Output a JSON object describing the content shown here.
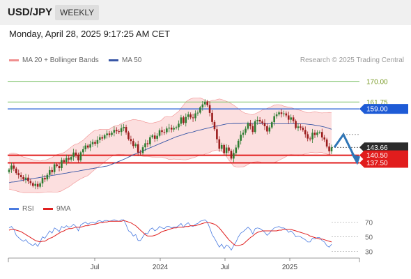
{
  "header": {
    "symbol": "USD/JPY",
    "period": "WEEKLY"
  },
  "timestamp": "Monday, April 28, 2025 9:17:25 AM CET",
  "credit": "Research © 2025 Trading Central",
  "legend_main": {
    "bb_label": "MA 20 + Bollinger Bands",
    "ma50_label": "MA 50"
  },
  "legend_rsi": {
    "rsi_label": "RSI",
    "ma9_label": "9MA"
  },
  "colors": {
    "bull": "#2e7d32",
    "bear": "#9b1c1c",
    "bb_fill": "#fcd9d9",
    "bb_line": "#f08f8f",
    "ma50": "#3856a6",
    "resistance_green": "#7fc36b",
    "blue_level": "#1e5bd6",
    "support_red": "#e11d1d",
    "arrow": "#2e75b6",
    "rsi": "#4a7be0",
    "rsi_ma": "#e02020"
  },
  "chart_data": [
    {
      "type": "candlestick",
      "title": "USD/JPY Weekly",
      "ylim": [
        124,
        176
      ],
      "x_axis_labels": [
        "Jul",
        "2024",
        "Jul",
        "2025"
      ],
      "levels": [
        {
          "value": 170.0,
          "label": "170.00",
          "style": "line-green"
        },
        {
          "value": 161.75,
          "label": "161.75",
          "style": "line-green"
        },
        {
          "value": 159.0,
          "label": "159.00",
          "style": "badge-blue"
        },
        {
          "value": 143.66,
          "label": "143.66",
          "style": "badge-dark"
        },
        {
          "value": 140.5,
          "label": "140.50",
          "style": "badge-red"
        },
        {
          "value": 137.5,
          "label": "137.50",
          "style": "badge-red"
        }
      ],
      "last_price": 143.66,
      "forecast": {
        "from": 143.66,
        "pivot": 148.8,
        "target": 137.5
      },
      "close": [
        134.8,
        136.4,
        135.2,
        133.4,
        132.6,
        131.8,
        130.9,
        131.6,
        130.2,
        129.4,
        128.3,
        129.1,
        128.0,
        129.3,
        131.5,
        130.9,
        132.7,
        134.6,
        133.8,
        136.9,
        136.2,
        135.4,
        138.6,
        137.9,
        139.4,
        138.8,
        139.8,
        141.6,
        140.7,
        138.5,
        141.7,
        142.9,
        144.4,
        143.6,
        144.9,
        145.8,
        145.1,
        146.6,
        147.7,
        147.2,
        148.5,
        149.2,
        148.6,
        149.5,
        150.6,
        150.1,
        149.8,
        151.3,
        151.8,
        149.6,
        147.0,
        146.2,
        144.2,
        144.9,
        141.6,
        141.4,
        143.7,
        145.3,
        144.9,
        147.7,
        148.4,
        147.1,
        148.3,
        150.5,
        149.8,
        149.7,
        151.2,
        151.5,
        150.8,
        151.4,
        151.7,
        153.1,
        155.6,
        153.4,
        155.8,
        156.8,
        155.6,
        155.3,
        157.2,
        157.5,
        159.6,
        160.8,
        161.9,
        160.5,
        157.4,
        153.8,
        150.9,
        146.9,
        143.1,
        144.6,
        141.4,
        143.6,
        142.3,
        139.2,
        141.4,
        143.6,
        146.3,
        148.7,
        149.5,
        151.1,
        153.3,
        152.1,
        149.8,
        154.1,
        154.6,
        154.0,
        153.4,
        152.1,
        150.0,
        151.6,
        153.7,
        156.1,
        156.8,
        157.6,
        157.0,
        157.2,
        156.4,
        154.7,
        155.6,
        154.2,
        151.4,
        152.0,
        151.5,
        150.6,
        148.9,
        147.2,
        146.9,
        149.5,
        148.6,
        149.6,
        149.8,
        147.6,
        146.8,
        144.0,
        142.1,
        143.66
      ],
      "bb_upper": [
        141.0,
        141.4,
        141.4,
        141.2,
        140.8,
        140.2,
        139.8,
        139.6,
        139.2,
        139.0,
        138.7,
        138.6,
        138.4,
        138.2,
        138.5,
        138.6,
        138.8,
        139.2,
        139.6,
        140.3,
        140.8,
        141.0,
        141.3,
        141.6,
        142.3,
        143.0,
        143.8,
        144.5,
        145.0,
        145.2,
        145.9,
        146.5,
        147.4,
        148.3,
        149.1,
        149.9,
        150.5,
        150.5,
        150.9,
        150.8,
        150.8,
        150.8,
        150.9,
        151.6,
        152.1,
        152.3,
        152.6,
        153.2,
        153.6,
        154.0,
        154.3,
        154.5,
        154.8,
        154.7,
        154.5,
        154.4,
        154.1,
        153.7,
        153.5,
        153.3,
        153.3,
        153.6,
        153.8,
        154.1,
        154.7,
        155.7,
        156.0,
        155.8,
        155.9,
        156.5,
        157.3,
        158.0,
        159.3,
        160.5,
        161.8,
        162.5,
        163.0,
        163.3,
        163.3,
        163.3,
        163.4,
        163.0,
        162.4,
        162.0,
        162.0,
        162.4,
        162.5,
        162.7,
        163.0,
        162.8,
        162.4,
        162.0,
        161.7,
        161.1,
        160.5,
        159.8,
        159.1,
        158.3,
        157.7,
        157.2,
        157.1,
        156.8,
        156.7,
        157.1,
        157.5,
        158.0,
        158.6,
        158.9,
        159.2,
        159.6,
        160.0,
        160.5,
        160.7,
        160.7,
        160.5,
        160.1,
        159.9,
        159.7,
        159.6,
        159.2,
        158.9,
        158.6,
        158.4,
        158.1,
        157.7,
        157.5,
        157.5,
        157.7,
        157.9,
        157.7,
        157.5,
        157.4,
        157.5,
        157.5,
        157.6,
        157.5
      ],
      "bb_lower": [
        127.0,
        126.8,
        126.5,
        126.3,
        126.0,
        125.8,
        125.6,
        125.6,
        125.6,
        125.6,
        125.6,
        125.6,
        125.5,
        125.6,
        125.7,
        125.8,
        125.9,
        125.9,
        125.9,
        125.8,
        125.8,
        126.0,
        126.3,
        126.9,
        127.4,
        127.9,
        128.6,
        129.3,
        129.9,
        130.6,
        131.1,
        131.6,
        132.0,
        132.4,
        133.3,
        134.1,
        134.9,
        135.6,
        136.3,
        137.1,
        137.9,
        138.6,
        139.4,
        140.1,
        140.5,
        140.8,
        140.9,
        140.8,
        140.8,
        140.6,
        140.5,
        140.7,
        140.8,
        140.8,
        140.6,
        140.3,
        140.1,
        140.0,
        140.0,
        139.9,
        139.8,
        139.8,
        139.7,
        139.7,
        139.7,
        139.5,
        139.2,
        138.8,
        138.9,
        139.0,
        138.9,
        138.9,
        138.8,
        138.7,
        138.7,
        138.9,
        139.2,
        139.5,
        139.8,
        140.2,
        140.4,
        140.5,
        141.0,
        141.3,
        141.6,
        142.1,
        142.4,
        142.6,
        142.5,
        142.1,
        141.3,
        140.0,
        138.6,
        137.4,
        136.2,
        135.9,
        135.8,
        135.9,
        135.9,
        136.3,
        136.9,
        137.4,
        137.8,
        137.9,
        138.0,
        137.9,
        137.6,
        137.4,
        137.3,
        137.4,
        137.6,
        137.7,
        138.0,
        138.5,
        139.0,
        139.5,
        140.0,
        140.6,
        140.8,
        140.7,
        140.5,
        140.3,
        140.4,
        140.8,
        141.1,
        141.3,
        141.6,
        141.6,
        141.5,
        141.5,
        141.6,
        141.6,
        141.3,
        141.0,
        140.8,
        140.5
      ],
      "ma50": [
        129.6,
        129.8,
        129.9,
        130.0,
        130.2,
        130.4,
        130.6,
        130.8,
        130.9,
        131.1,
        131.2,
        131.4,
        131.5,
        131.7,
        131.8,
        132.0,
        132.1,
        132.3,
        132.5,
        132.6,
        132.8,
        132.9,
        133.1,
        133.3,
        133.4,
        133.6,
        133.8,
        133.9,
        134.1,
        134.2,
        134.4,
        134.6,
        134.7,
        134.9,
        135.1,
        135.2,
        135.4,
        135.6,
        135.7,
        135.9,
        136.1,
        136.2,
        136.5,
        136.9,
        137.3,
        137.7,
        138.1,
        138.5,
        138.9,
        139.3,
        139.8,
        140.2,
        140.7,
        141.1,
        141.5,
        141.9,
        142.3,
        142.7,
        143.1,
        143.5,
        143.9,
        144.3,
        144.7,
        145.1,
        145.5,
        145.9,
        146.3,
        146.7,
        147.1,
        147.5,
        147.9,
        148.2,
        148.5,
        148.8,
        149.1,
        149.4,
        149.6,
        149.8,
        150.1,
        150.4,
        150.6,
        150.8,
        151.1,
        151.3,
        151.5,
        151.8,
        152.0,
        152.2,
        152.4,
        152.6,
        152.8,
        153.0,
        153.1,
        153.1,
        153.2,
        153.2,
        153.2,
        153.2,
        153.3,
        153.3,
        153.3,
        153.3,
        153.3,
        153.3,
        153.3,
        153.2,
        153.2,
        153.1,
        153.1,
        153.1,
        153.1,
        153.1,
        153.1,
        153.1,
        153.1,
        153.1,
        153.1,
        153.1,
        153.1,
        153.1,
        153.1,
        153.1,
        153.1,
        153.1,
        153.0,
        152.9,
        152.8,
        152.7,
        152.5,
        152.4,
        152.2,
        152.0,
        151.8,
        151.5,
        151.2,
        150.9
      ]
    },
    {
      "type": "line",
      "title": "RSI",
      "ylim": [
        25,
        75
      ],
      "yticks": [
        30,
        50,
        70
      ],
      "series": [
        {
          "name": "RSI",
          "values": [
            62,
            64,
            60,
            52,
            49,
            46,
            44,
            46,
            42,
            40,
            38,
            41,
            37,
            43,
            50,
            48,
            53,
            58,
            55,
            62,
            60,
            57,
            64,
            62,
            65,
            63,
            64,
            67,
            64,
            58,
            66,
            68,
            70,
            67,
            69,
            70,
            68,
            71,
            72,
            70,
            72,
            72,
            71,
            72,
            73,
            72,
            71,
            73,
            73,
            66,
            58,
            56,
            51,
            53,
            45,
            45,
            50,
            55,
            54,
            60,
            62,
            58,
            60,
            64,
            62,
            61,
            64,
            64,
            62,
            63,
            63,
            65,
            68,
            63,
            67,
            69,
            65,
            64,
            67,
            68,
            71,
            72,
            73,
            70,
            62,
            53,
            48,
            42,
            36,
            40,
            34,
            39,
            37,
            32,
            38,
            43,
            50,
            55,
            57,
            60,
            63,
            60,
            54,
            61,
            62,
            61,
            59,
            56,
            52,
            55,
            59,
            62,
            63,
            64,
            62,
            62,
            60,
            56,
            58,
            55,
            50,
            51,
            50,
            48,
            46,
            43,
            43,
            48,
            47,
            49,
            49,
            45,
            43,
            38,
            36,
            40
          ]
        },
        {
          "name": "9MA",
          "values": [
            59,
            60,
            60,
            59,
            58,
            57,
            55,
            53,
            51,
            49,
            47,
            45,
            44,
            43,
            44,
            44,
            46,
            48,
            49,
            51,
            53,
            55,
            57,
            58,
            60,
            61,
            61,
            62,
            63,
            63,
            63,
            64,
            65,
            65,
            66,
            67,
            67,
            68,
            69,
            69,
            70,
            70,
            71,
            71,
            71,
            71,
            71,
            71,
            72,
            71,
            70,
            69,
            67,
            65,
            62,
            59,
            56,
            53,
            51,
            51,
            51,
            52,
            53,
            55,
            57,
            58,
            59,
            60,
            61,
            62,
            62,
            63,
            63,
            63,
            64,
            64,
            65,
            65,
            65,
            66,
            67,
            68,
            69,
            69,
            69,
            68,
            67,
            65,
            62,
            58,
            54,
            50,
            46,
            43,
            40,
            38,
            38,
            39,
            40,
            43,
            46,
            49,
            51,
            54,
            56,
            57,
            58,
            58,
            58,
            58,
            58,
            58,
            58,
            59,
            59,
            60,
            60,
            60,
            60,
            59,
            58,
            57,
            56,
            55,
            54,
            53,
            51,
            50,
            49,
            48,
            47,
            47,
            46,
            45,
            44,
            43
          ]
        }
      ]
    }
  ]
}
